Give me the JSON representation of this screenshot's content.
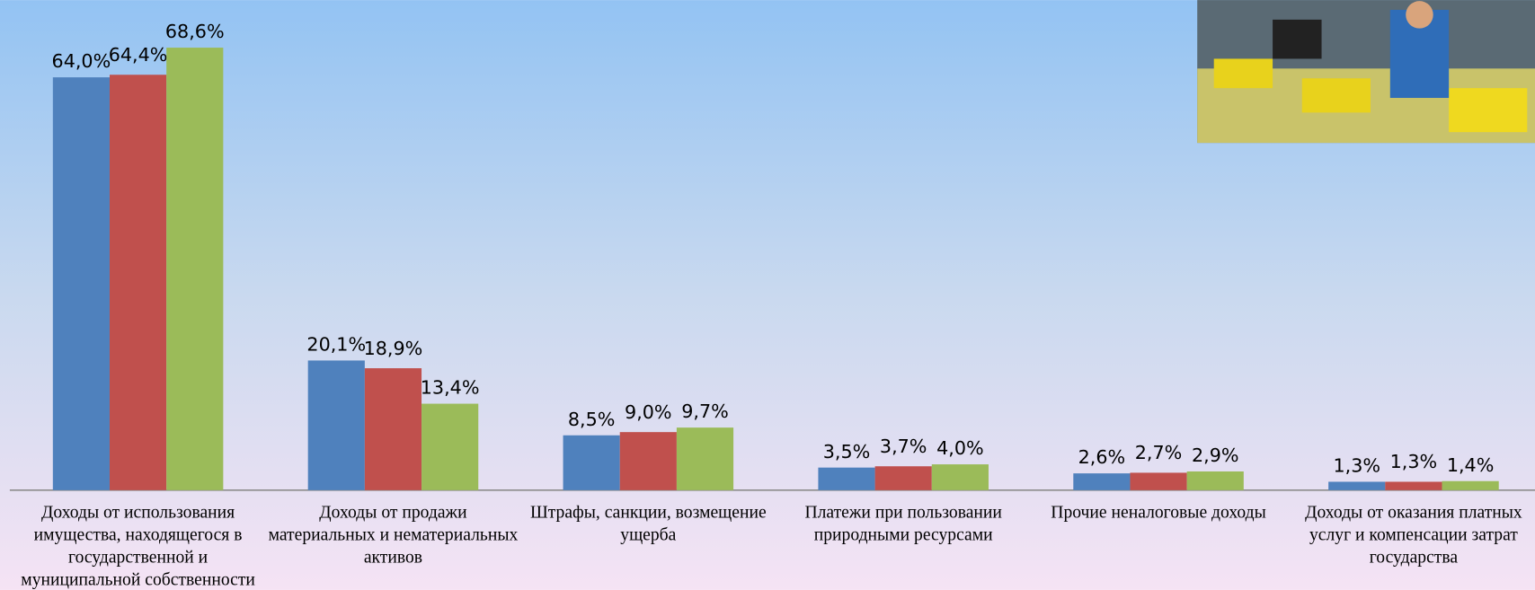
{
  "chart_data": {
    "type": "bar",
    "categories": [
      "Доходы от использования имущества, находящегося в государственной и муниципальной собственности",
      "Доходы от продажи материальных и нематериальных активов",
      "Штрафы, санкции, возмещение ущерба",
      "Платежи при пользовании природными ресурсами",
      "Прочие неналоговые доходы",
      "Доходы от оказания платных услуг и компенсации затрат государства"
    ],
    "series": [
      {
        "color": "#4f81bd",
        "values": [
          64.0,
          20.1,
          8.5,
          3.5,
          2.6,
          1.3
        ],
        "value_labels": [
          "64,0%",
          "20,1%",
          "8,5%",
          "3,5%",
          "2,6%",
          "1,3%"
        ]
      },
      {
        "color": "#c0504d",
        "values": [
          64.4,
          18.9,
          9.0,
          3.7,
          2.7,
          1.3
        ],
        "value_labels": [
          "64,4%",
          "18,9%",
          "9,0%",
          "3,7%",
          "2,7%",
          "1,3%"
        ]
      },
      {
        "color": "#9bbb59",
        "values": [
          68.6,
          13.4,
          9.7,
          4.0,
          2.9,
          1.4
        ],
        "value_labels": [
          "68,6%",
          "13,4%",
          "9,7%",
          "4,0%",
          "2,9%",
          "1,4%"
        ]
      }
    ]
  }
}
